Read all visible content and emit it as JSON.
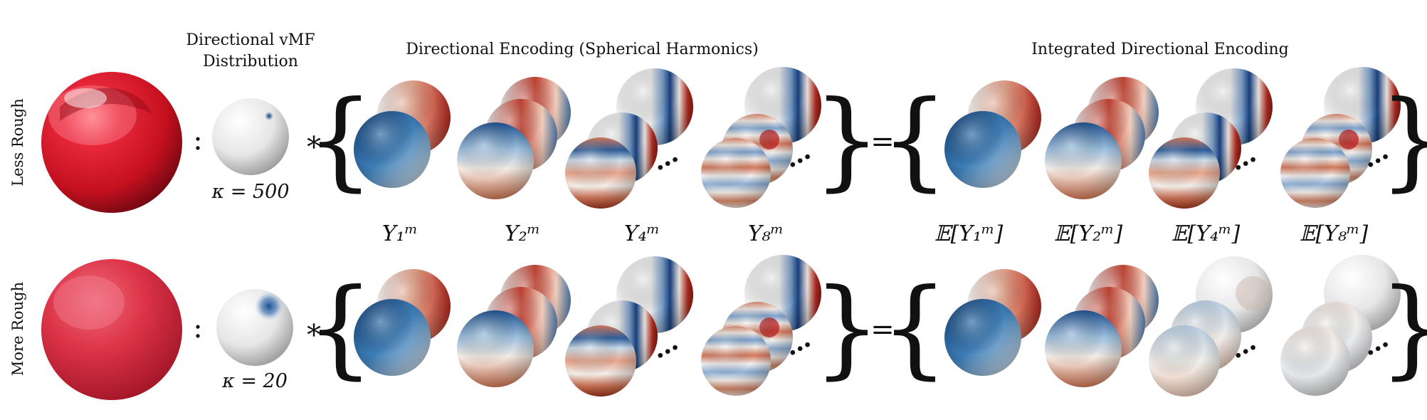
{
  "headers": {
    "vmf_line1": "Directional vMF",
    "vmf_line2": "Distribution",
    "de": "Directional Encoding (Spherical Harmonics)",
    "ide": "Integrated Directional Encoding"
  },
  "rows": [
    {
      "label": "Less Rough",
      "kappa": "κ = 500",
      "roughness": "low"
    },
    {
      "label": "More Rough",
      "kappa": "κ = 20",
      "roughness": "high"
    }
  ],
  "operators": {
    "colon": ":",
    "conv": "∗",
    "equals": "=",
    "ellipsis": "…"
  },
  "de_labels": [
    "Y₁ᵐ",
    "Y₂ᵐ",
    "Y₄ᵐ",
    "Y₈ᵐ"
  ],
  "ide_labels": [
    "𝔼[Y₁ᵐ]",
    "𝔼[Y₂ᵐ]",
    "𝔼[Y₄ᵐ]",
    "𝔼[Y₈ᵐ]"
  ],
  "colors": {
    "material": "#d41a2c",
    "sh_positive": "#b0202a",
    "sh_negative": "#1f5a9c"
  }
}
